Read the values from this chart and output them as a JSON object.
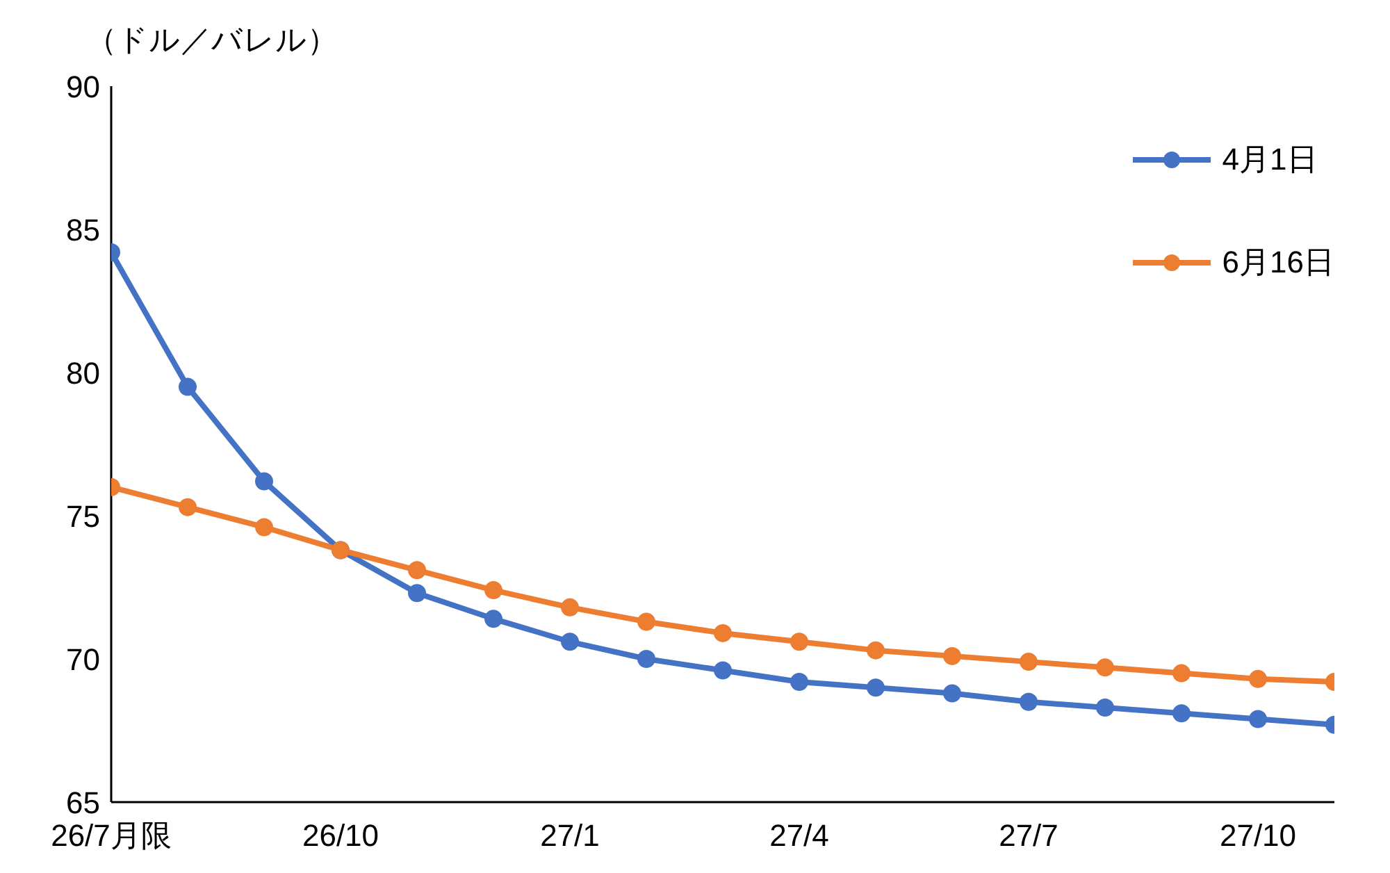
{
  "chart_data": {
    "type": "line",
    "ylabel": "（ドル／バレル）",
    "categories": [
      "26/7月限",
      null,
      null,
      "26/10",
      null,
      null,
      "27/1",
      null,
      null,
      "27/4",
      null,
      null,
      "27/7",
      null,
      null,
      "27/10",
      null
    ],
    "series": [
      {
        "name": "4月1日",
        "color": "#4472c4",
        "values": [
          84.2,
          79.5,
          76.2,
          73.8,
          72.3,
          71.4,
          70.6,
          70.0,
          69.6,
          69.2,
          69.0,
          68.8,
          68.5,
          68.3,
          68.1,
          67.9,
          67.7
        ]
      },
      {
        "name": "6月16日",
        "color": "#ed7d31",
        "values": [
          76.0,
          75.3,
          74.6,
          73.8,
          73.1,
          72.4,
          71.8,
          71.3,
          70.9,
          70.6,
          70.3,
          70.1,
          69.9,
          69.7,
          69.5,
          69.3,
          69.2
        ]
      }
    ],
    "ylim": [
      65,
      90
    ],
    "yticks": [
      65,
      70,
      75,
      80,
      85,
      90
    ],
    "grid": false,
    "legend": "top right",
    "marker": "circle",
    "line_style": "solid"
  }
}
